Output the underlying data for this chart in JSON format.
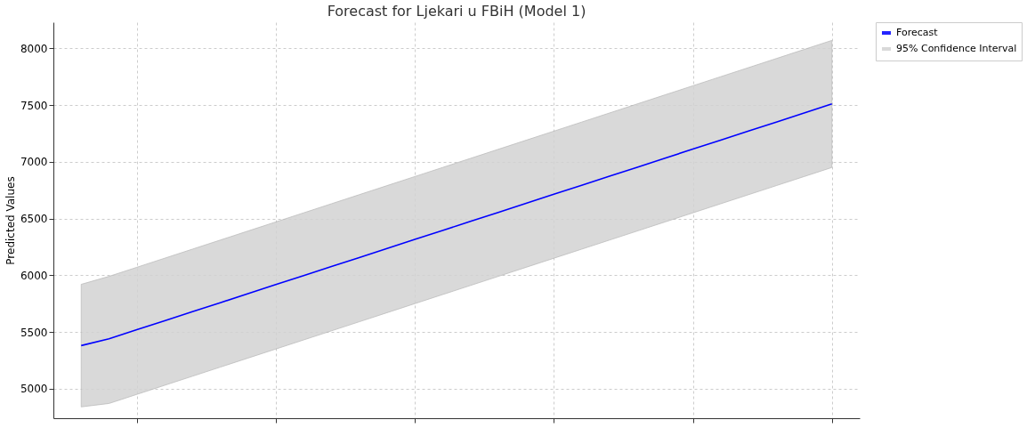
{
  "chart_data": {
    "type": "line",
    "title": "Forecast for Ljekari u FBiH (Model 1)",
    "ylabel": "Predicted Values",
    "categories": [
      null,
      null,
      null,
      null,
      null,
      null,
      null,
      null,
      null,
      null,
      null,
      null,
      null,
      null,
      null,
      null,
      null,
      null,
      null,
      null,
      null,
      null,
      null,
      null,
      null,
      null,
      null,
      null
    ],
    "series": [
      {
        "name": "Forecast",
        "type": "line",
        "color": "#0000ff",
        "values": [
          5380,
          5440,
          5520,
          5599,
          5679,
          5758,
          5838,
          5918,
          5997,
          6077,
          6156,
          6236,
          6316,
          6395,
          6475,
          6554,
          6634,
          6714,
          6793,
          6873,
          6952,
          7032,
          7112,
          7191,
          7271,
          7350,
          7430,
          7510
        ],
        "lower": [
          4840,
          4870,
          4950,
          5030,
          5110,
          5190,
          5270,
          5350,
          5430,
          5510,
          5590,
          5670,
          5750,
          5830,
          5910,
          5990,
          6070,
          6150,
          6230,
          6310,
          6390,
          6470,
          6550,
          6630,
          6710,
          6790,
          6870,
          6950
        ],
        "upper": [
          5920,
          5990,
          6070,
          6150,
          6230,
          6310,
          6390,
          6470,
          6550,
          6630,
          6710,
          6790,
          6870,
          6950,
          7030,
          7110,
          7190,
          7270,
          7350,
          7430,
          7510,
          7590,
          7670,
          7750,
          7830,
          7910,
          7990,
          8070
        ]
      }
    ],
    "annotations": [
      "95% Confidence Interval"
    ],
    "ylim": [
      4740,
      8230
    ],
    "yticks": [
      5000,
      5500,
      6000,
      6500,
      7000,
      7500,
      8000
    ],
    "grid": true,
    "legend": "right",
    "tick_labels": "y",
    "marker": "none",
    "line_style": "solid"
  }
}
